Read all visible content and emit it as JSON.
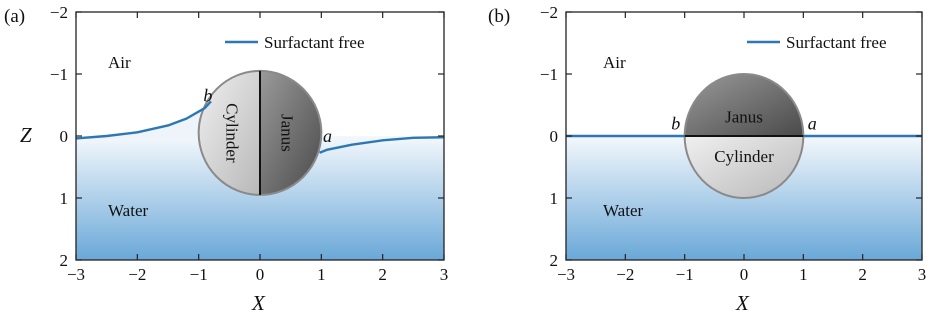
{
  "chart_data": [
    {
      "type": "line",
      "panel_label": "(a)",
      "xlabel": "X",
      "ylabel": "Z",
      "xlim": [
        -3,
        3
      ],
      "ylim": [
        -2,
        2
      ],
      "y_inverted": true,
      "x_ticks": [
        -3,
        -2,
        -1,
        0,
        1,
        2,
        3
      ],
      "y_ticks": [
        -2,
        -1,
        0,
        1,
        2
      ],
      "x_tick_labels": [
        "−3",
        "−2",
        "−1",
        "0",
        "1",
        "2",
        "3"
      ],
      "y_tick_labels": [
        "−2",
        "−1",
        "0",
        "1",
        "2"
      ],
      "legend": {
        "label": "Surfactant free",
        "placement": "top-right",
        "color": "#2d77b3"
      },
      "region_labels": {
        "air": "Air",
        "water": "Water"
      },
      "body": {
        "type": "janus-cylinder",
        "center": [
          0,
          -0.05
        ],
        "radius": 1,
        "orientation": "vertical-split",
        "left_label": "Cylinder",
        "right_label": "Janus",
        "left_color": "#cfcfcf",
        "right_color": "#6b6b6b"
      },
      "point_labels": [
        {
          "text": "b",
          "x": -0.85,
          "y": -0.65
        },
        {
          "text": "a",
          "x": 1.1,
          "y": 0.0
        }
      ],
      "series": [
        {
          "name": "Surfactant free",
          "segments": [
            {
              "x": [
                -3,
                -2.5,
                -2,
                -1.5,
                -1.2,
                -0.9,
                -0.8
              ],
              "y": [
                0.04,
                0.0,
                -0.06,
                -0.17,
                -0.28,
                -0.45,
                -0.56
              ]
            },
            {
              "x": [
                0.97,
                1.1,
                1.5,
                2,
                2.5,
                3
              ],
              "y": [
                0.27,
                0.22,
                0.14,
                0.07,
                0.03,
                0.02
              ]
            }
          ]
        }
      ]
    },
    {
      "type": "line",
      "panel_label": "(b)",
      "xlabel": "X",
      "ylabel": "",
      "xlim": [
        -3,
        3
      ],
      "ylim": [
        -2,
        2
      ],
      "y_inverted": true,
      "x_ticks": [
        -3,
        -2,
        -1,
        0,
        1,
        2,
        3
      ],
      "y_ticks": [
        -2,
        -1,
        0,
        1,
        2
      ],
      "x_tick_labels": [
        "−3",
        "−2",
        "−1",
        "0",
        "1",
        "2",
        "3"
      ],
      "y_tick_labels": [
        "−2",
        "−1",
        "0",
        "1",
        "2"
      ],
      "legend": {
        "label": "Surfactant free",
        "placement": "top-right",
        "color": "#2d77b3"
      },
      "region_labels": {
        "air": "Air",
        "water": "Water"
      },
      "body": {
        "type": "janus-cylinder",
        "center": [
          0,
          0
        ],
        "radius": 1,
        "orientation": "horizontal-split",
        "top_label": "Janus",
        "bottom_label": "Cylinder",
        "top_color": "#6b6b6b",
        "bottom_color": "#cfcfcf"
      },
      "point_labels": [
        {
          "text": "b",
          "x": -1.15,
          "y": -0.2
        },
        {
          "text": "a",
          "x": 1.15,
          "y": -0.2
        }
      ],
      "series": [
        {
          "name": "Surfactant free",
          "segments": [
            {
              "x": [
                -3,
                -1
              ],
              "y": [
                0,
                0
              ]
            },
            {
              "x": [
                1,
                3
              ],
              "y": [
                0,
                0
              ]
            }
          ]
        }
      ]
    }
  ]
}
